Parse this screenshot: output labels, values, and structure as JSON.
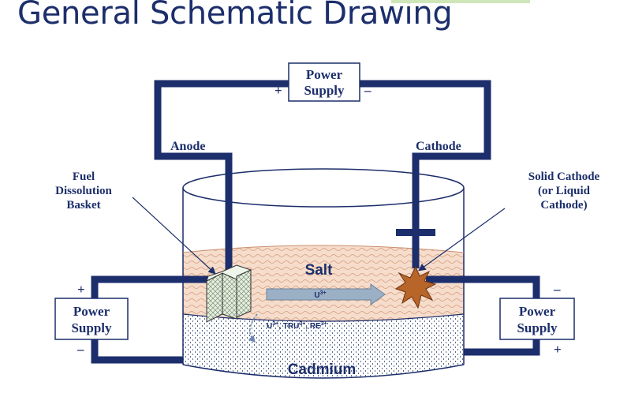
{
  "title": "General Schematic Drawing",
  "top_power_supply": {
    "line1": "Power",
    "line2": "Supply",
    "plus": "+",
    "minus": "–"
  },
  "anode_label": "Anode",
  "cathode_label": "Cathode",
  "fuel_basket_label": {
    "line1": "Fuel",
    "line2": "Dissolution",
    "line3": "Basket"
  },
  "solid_cathode_label": {
    "line1": "Solid Cathode",
    "line2": "(or Liquid",
    "line3": "Cathode)"
  },
  "salt_label": "Salt",
  "transport_ion": {
    "base": "U",
    "charge": "3+"
  },
  "ions_label": {
    "u": "U",
    "u_charge": "3+",
    "tru": ", TRU",
    "tru_charge": "3+",
    "re": ", RE",
    "re_charge": "3+"
  },
  "cadmium_label": "Cadmium",
  "left_power_supply": {
    "line1": "Power",
    "line2": "Supply",
    "plus": "+",
    "minus": "–"
  },
  "right_power_supply": {
    "line1": "Power",
    "line2": "Supply",
    "plus": "+",
    "minus": "–"
  },
  "colors": {
    "navy": "#1c2e6b",
    "salt": "#f6dccb",
    "salt_wave": "#d49a7a",
    "cathode_deposit": "#b8652a",
    "basket": "#e3eedc",
    "arrow": "#9bb0c4"
  }
}
